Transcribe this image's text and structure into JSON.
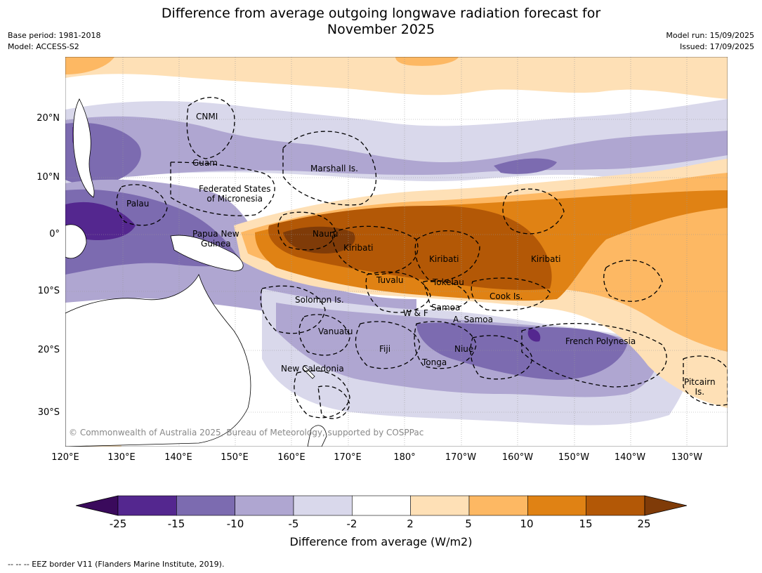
{
  "title_line1": "Difference from average outgoing longwave radiation forecast for",
  "title_line2": "November 2025",
  "base_period": "Base period: 1981-2018",
  "model": "Model: ACCESS-S2",
  "model_run": "Model run: 15/09/2025",
  "issued": "Issued: 17/09/2025",
  "lat_labels": [
    "20°N",
    "10°N",
    "0°",
    "10°S",
    "20°S",
    "30°S"
  ],
  "lon_labels": [
    "120°E",
    "130°E",
    "140°E",
    "150°E",
    "160°E",
    "170°E",
    "180°",
    "170°W",
    "160°W",
    "150°W",
    "140°W",
    "130°W"
  ],
  "colorbar": {
    "ticks": [
      "-25",
      "-15",
      "-10",
      "-5",
      "-2",
      "2",
      "5",
      "10",
      "15",
      "25"
    ],
    "colors": [
      "#3a0a5c",
      "#54278f",
      "#7c6bb0",
      "#afa6d1",
      "#d9d8eb",
      "#ffffff",
      "#fee0b6",
      "#fdb863",
      "#e08214",
      "#b35806",
      "#7f3b08"
    ],
    "title": "Difference from average (W/m2)"
  },
  "places": [
    {
      "name": "CNMI"
    },
    {
      "name": "Guam"
    },
    {
      "name": "Marshall Is."
    },
    {
      "name": "Federated States\nof Micronesia"
    },
    {
      "name": "Palau"
    },
    {
      "name": "Nauru"
    },
    {
      "name": "Papua New\nGuinea"
    },
    {
      "name": "Kiribati"
    },
    {
      "name": "Kiribati"
    },
    {
      "name": "Kiribati"
    },
    {
      "name": "Tuvalu"
    },
    {
      "name": "Tokelau"
    },
    {
      "name": "Cook Is."
    },
    {
      "name": "Solomon Is."
    },
    {
      "name": "Samoa"
    },
    {
      "name": "W & F"
    },
    {
      "name": "A. Samoa"
    },
    {
      "name": "Vanuatu"
    },
    {
      "name": "Fiji"
    },
    {
      "name": "Niue"
    },
    {
      "name": "Tonga"
    },
    {
      "name": "French Polynesia"
    },
    {
      "name": "New Caledonia"
    },
    {
      "name": "Pitcairn\nIs."
    }
  ],
  "copyright": "© Commonwealth of Australia 2025, Bureau of Meteorology, supported by COSPPac",
  "footnote": "--  --  -- EEZ border V11 (Flanders Marine Institute, 2019)."
}
